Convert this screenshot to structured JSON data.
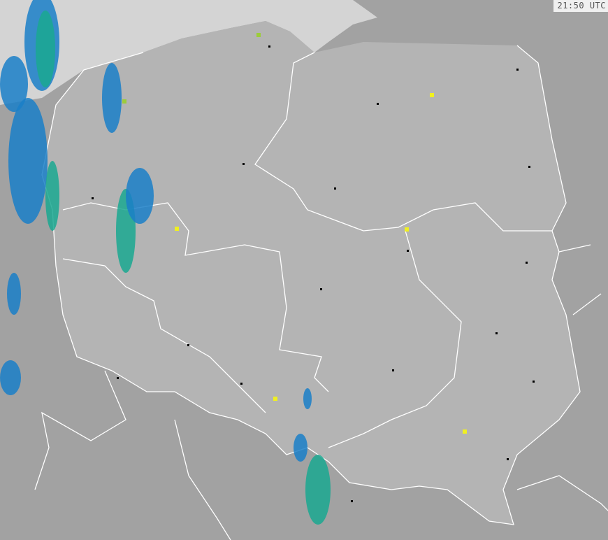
{
  "timestamp": "21:50 UTC",
  "colors": {
    "sea": "#d4d4d4",
    "country": "#b4b4b4",
    "neighbors": "#a2a2a2",
    "borders": "#ffffff",
    "radar_weak": "#1a7fc8",
    "radar_moderate": "#1aa890",
    "radar_strong": "#9ccc3a",
    "radar_heavy": "#f0f020"
  }
}
